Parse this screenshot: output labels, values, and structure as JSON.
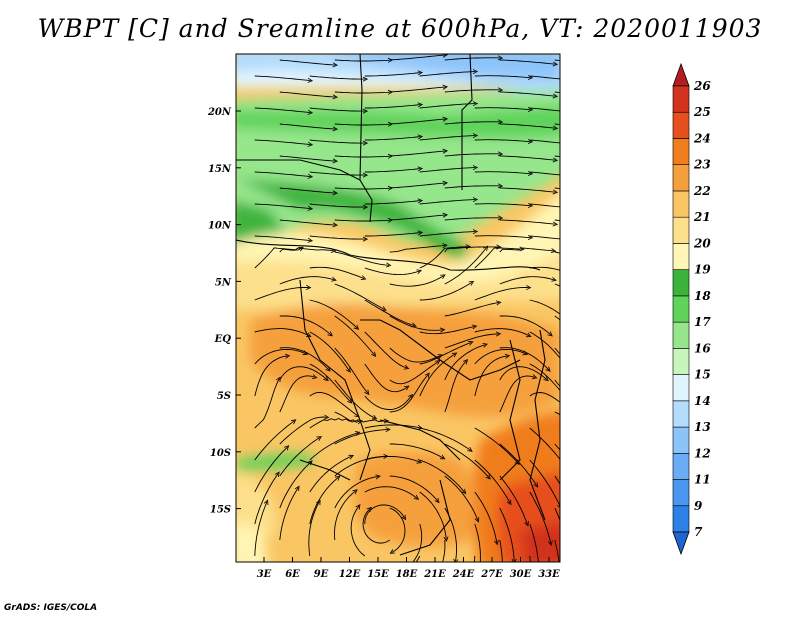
{
  "title": "WBPT [C] and Sreamline at 600hPa, VT: 2020011903",
  "footer": "GrADS: IGES/COLA",
  "x_ticks": [
    "3E",
    "6E",
    "9E",
    "12E",
    "15E",
    "18E",
    "21E",
    "24E",
    "27E",
    "30E",
    "33E"
  ],
  "y_ticks": [
    "20N",
    "15N",
    "10N",
    "5N",
    "EQ",
    "5S",
    "10S",
    "15S"
  ],
  "colorbar": {
    "levels": [
      "7",
      "9",
      "11",
      "12",
      "13",
      "14",
      "15",
      "16",
      "17",
      "18",
      "19",
      "20",
      "21",
      "22",
      "23",
      "24",
      "25",
      "26"
    ],
    "colors": [
      "#1e64d2",
      "#2d80e6",
      "#4a96f0",
      "#6aacf5",
      "#8cc4fa",
      "#b4dcfd",
      "#e1f5fe",
      "#c8f5bc",
      "#96e68c",
      "#5fd35a",
      "#3cb43c",
      "#fff5b4",
      "#fde08c",
      "#fac664",
      "#f5a03c",
      "#f07d1e",
      "#e6501e",
      "#d2321e",
      "#b41e1e"
    ]
  }
}
